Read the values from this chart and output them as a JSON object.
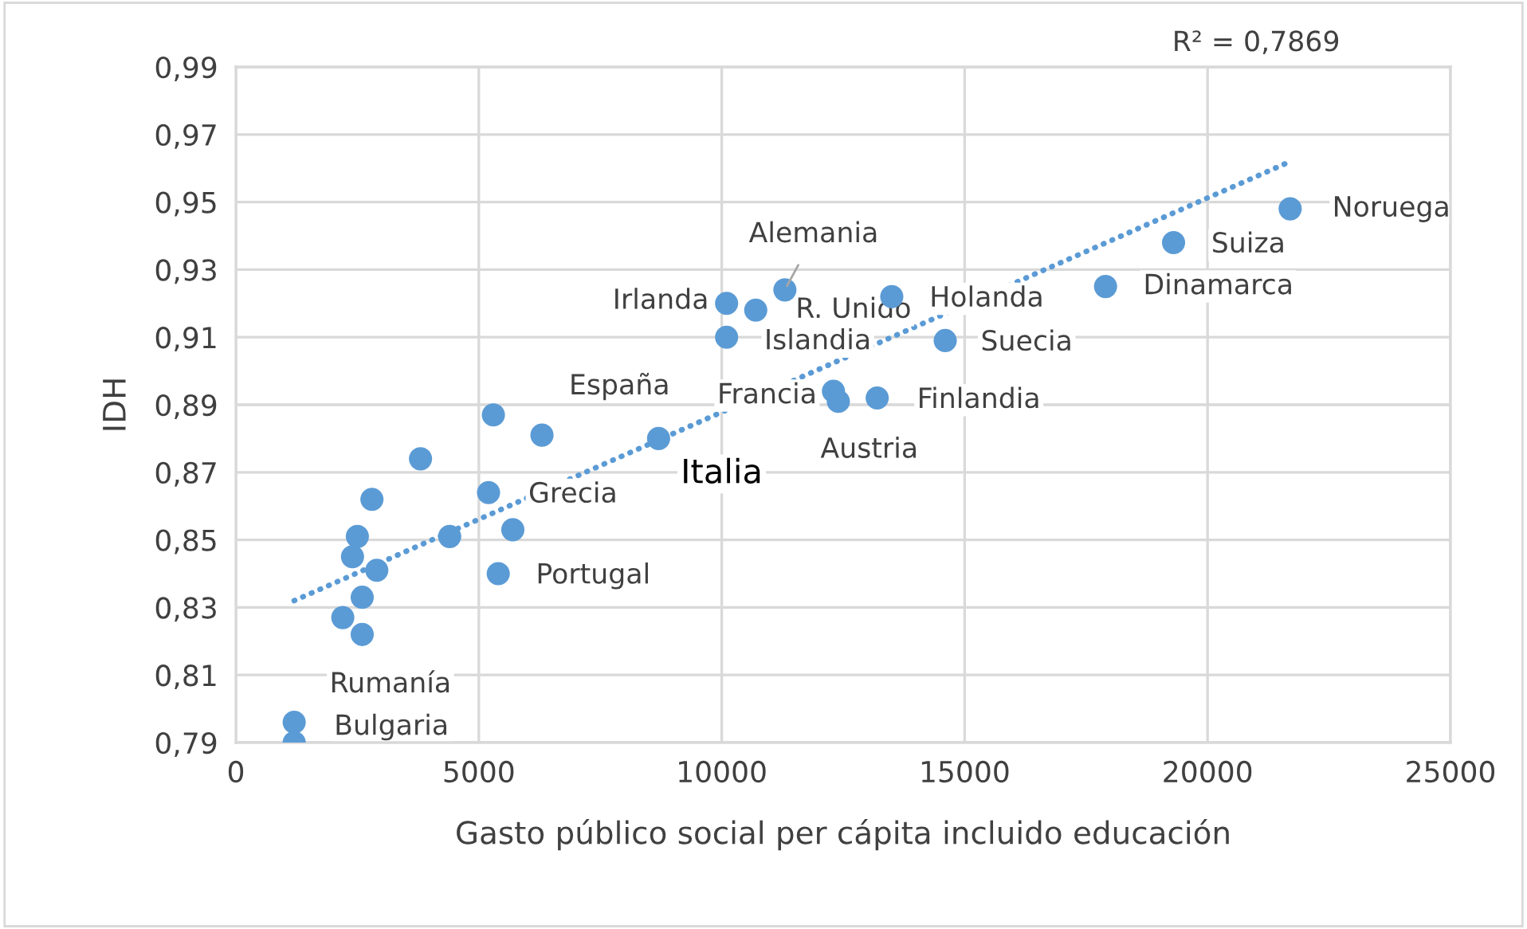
{
  "chart_data": {
    "type": "scatter",
    "xlabel": "Gasto público social per cápita incluido educación",
    "ylabel": "IDH",
    "xlim": [
      0,
      25000
    ],
    "xticks": [
      0,
      5000,
      10000,
      15000,
      20000,
      25000
    ],
    "ylim": [
      0.79,
      0.99
    ],
    "yticks": [
      {
        "value": 0.79,
        "label": "0,79"
      },
      {
        "value": 0.81,
        "label": "0,81"
      },
      {
        "value": 0.83,
        "label": "0,83"
      },
      {
        "value": 0.85,
        "label": "0,85"
      },
      {
        "value": 0.87,
        "label": "0,87"
      },
      {
        "value": 0.89,
        "label": "0,89"
      },
      {
        "value": 0.91,
        "label": "0,91"
      },
      {
        "value": 0.93,
        "label": "0,93"
      },
      {
        "value": 0.95,
        "label": "0,95"
      },
      {
        "value": 0.97,
        "label": "0,97"
      },
      {
        "value": 0.99,
        "label": "0,99"
      }
    ],
    "grid": true,
    "legend": false,
    "marker": "circle",
    "series": [
      {
        "color": "#5b9bd5",
        "x": [
          21700,
          19300,
          17900,
          13500,
          14600,
          13200,
          12300,
          12400,
          11300,
          10700,
          10100,
          10100,
          8700,
          6300,
          5300,
          5200,
          5700,
          5400,
          3800,
          4400,
          2800,
          2500,
          2400,
          2900,
          2600,
          2200,
          2600,
          1200,
          1200
        ],
        "values": [
          0.948,
          0.938,
          0.925,
          0.922,
          0.909,
          0.892,
          0.894,
          0.891,
          0.924,
          0.918,
          0.92,
          0.91,
          0.88,
          0.881,
          0.887,
          0.864,
          0.853,
          0.84,
          0.874,
          0.851,
          0.862,
          0.851,
          0.845,
          0.841,
          0.833,
          0.827,
          0.822,
          0.796,
          0.79
        ]
      },
      {
        "type": "line",
        "color": "#5b9bd5",
        "line_style": "dotted",
        "marker": "none",
        "x": [
          1200,
          21700
        ],
        "values": [
          0.832,
          0.962
        ]
      }
    ],
    "annotations": [
      {
        "text": "Noruega",
        "x": 21700,
        "y": 0.948
      },
      {
        "text": "Suiza",
        "x": 19300,
        "y": 0.938
      },
      {
        "text": "Dinamarca",
        "x": 17900,
        "y": 0.925
      },
      {
        "text": "Holanda",
        "x": 13500,
        "y": 0.922
      },
      {
        "text": "Suecia",
        "x": 14600,
        "y": 0.909
      },
      {
        "text": "Finlandia",
        "x": 13200,
        "y": 0.892
      },
      {
        "text": "Francia",
        "x": 12300,
        "y": 0.894
      },
      {
        "text": "Austria",
        "x": 12400,
        "y": 0.891
      },
      {
        "text": "Alemania",
        "x": 11300,
        "y": 0.924
      },
      {
        "text": "R. Unido",
        "x": 10700,
        "y": 0.918
      },
      {
        "text": "Irlanda",
        "x": 10100,
        "y": 0.92
      },
      {
        "text": "Islandia",
        "x": 10100,
        "y": 0.91
      },
      {
        "text": "Italia",
        "x": 8700,
        "y": 0.88
      },
      {
        "text": "España",
        "x": 6300,
        "y": 0.881
      },
      {
        "text": "Grecia",
        "x": 5200,
        "y": 0.864
      },
      {
        "text": "Portugal",
        "x": 5400,
        "y": 0.84
      },
      {
        "text": "Rumanía",
        "x": 1200,
        "y": 0.796
      },
      {
        "text": "Bulgaria",
        "x": 1200,
        "y": 0.79
      },
      "R² = 0,7869"
    ]
  }
}
